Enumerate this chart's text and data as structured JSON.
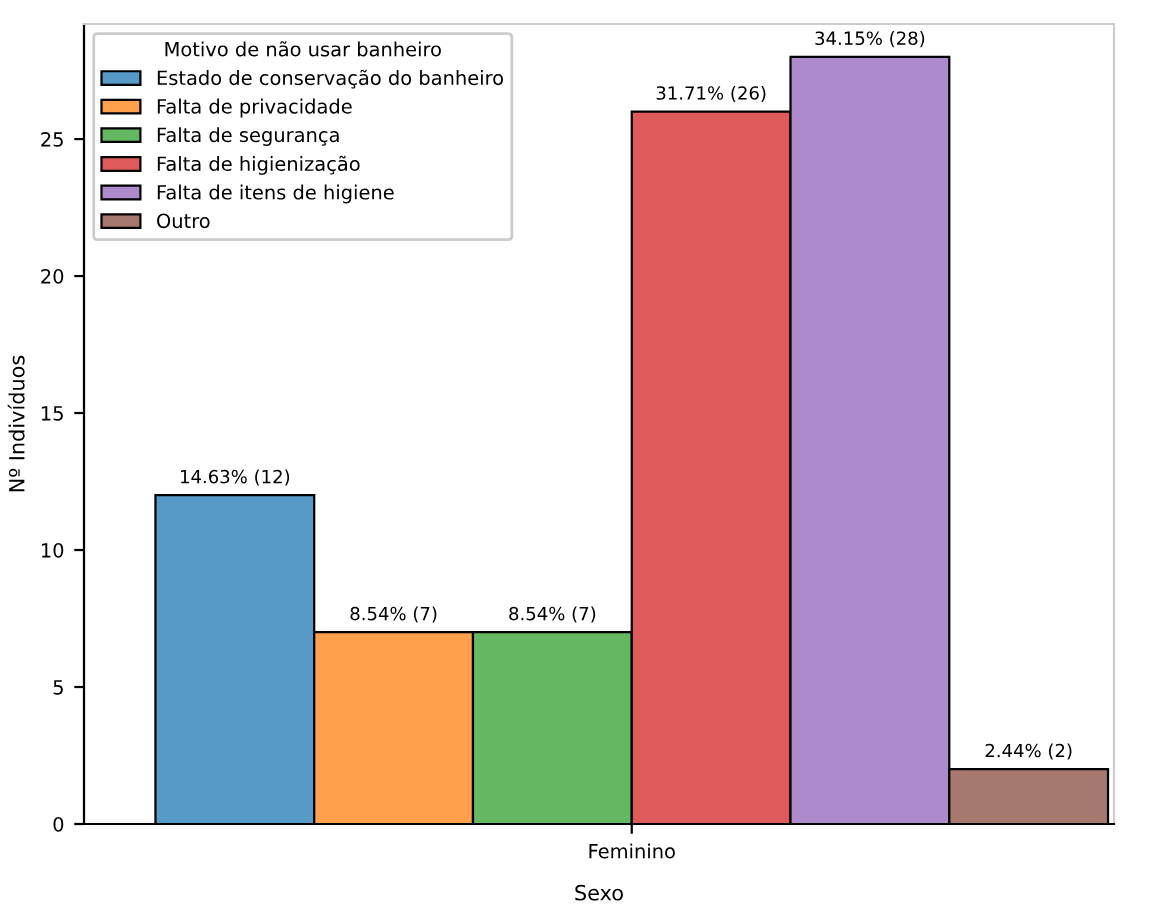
{
  "chart_data": {
    "type": "bar",
    "xlabel": "Sexo",
    "ylabel": "Nº Indivíduos",
    "legend_title": "Motivo de não usar banheiro",
    "categories": [
      "Feminino"
    ],
    "series": [
      {
        "name": "Estado de conservação do banheiro",
        "color": "#5799c7",
        "values": [
          12
        ],
        "value_labels": [
          "14.63% (12)"
        ]
      },
      {
        "name": "Falta de privacidade",
        "color": "#ffa04c",
        "values": [
          7
        ],
        "value_labels": [
          "8.54% (7)"
        ]
      },
      {
        "name": "Falta de segurança",
        "color": "#65b862",
        "values": [
          7
        ],
        "value_labels": [
          "8.54% (7)"
        ]
      },
      {
        "name": "Falta de higienização",
        "color": "#df5b5b",
        "values": [
          26
        ],
        "value_labels": [
          "31.71% (26)"
        ]
      },
      {
        "name": "Falta de itens de higiene",
        "color": "#ad8acb",
        "values": [
          28
        ],
        "value_labels": [
          "34.15% (28)"
        ]
      },
      {
        "name": "Outro",
        "color": "#a6786e",
        "values": [
          2
        ],
        "value_labels": [
          "2.44% (2)"
        ]
      }
    ],
    "ylim": [
      0,
      29.2
    ],
    "yticks": [
      0,
      5,
      10,
      15,
      20,
      25
    ],
    "grid": false,
    "legend": "top left"
  }
}
